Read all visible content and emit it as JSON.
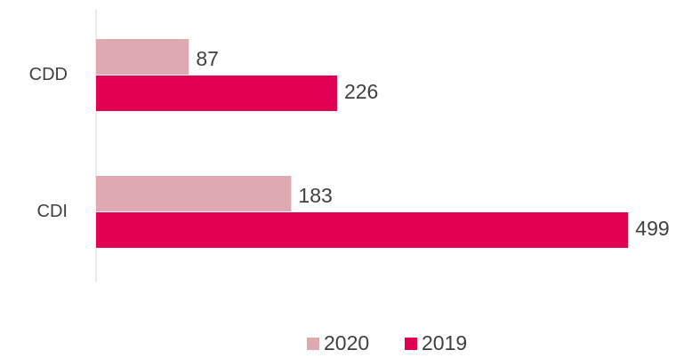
{
  "chart_data": {
    "type": "bar",
    "orientation": "horizontal",
    "categories": [
      "CDD",
      "CDI"
    ],
    "series": [
      {
        "name": "2020",
        "color": "#dea9b0",
        "values": [
          87,
          183
        ]
      },
      {
        "name": "2019",
        "color": "#e20052",
        "values": [
          226,
          499
        ]
      }
    ],
    "legend": "bottom"
  }
}
